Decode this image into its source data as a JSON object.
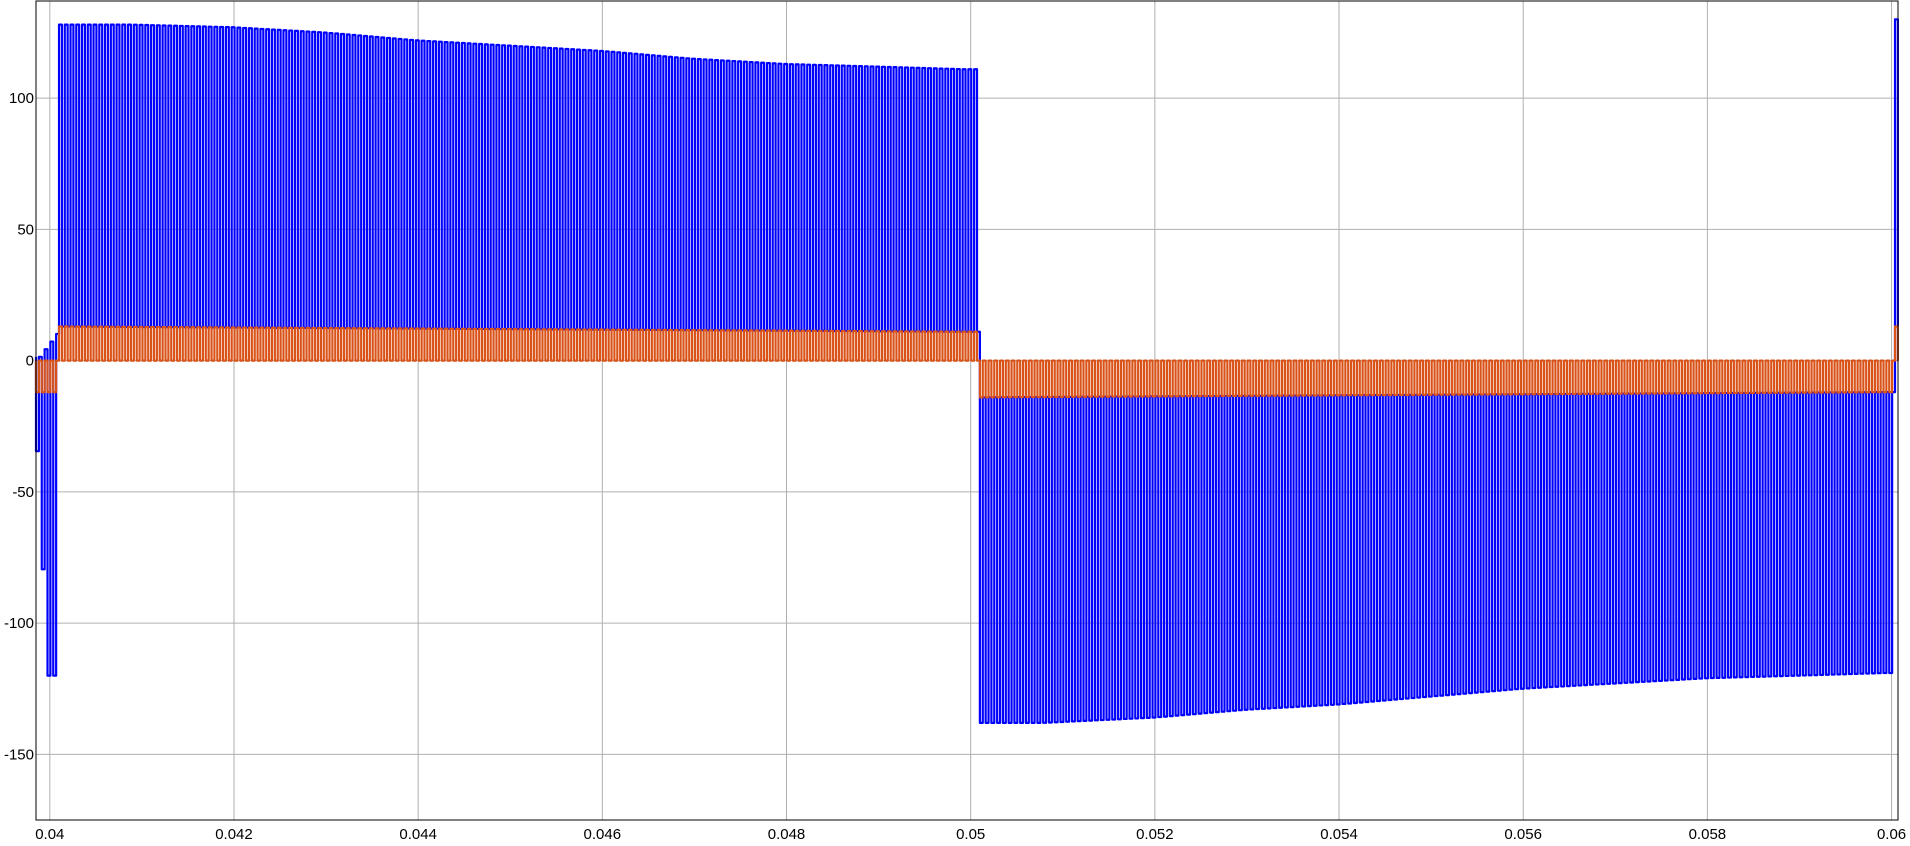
{
  "chart_data": {
    "type": "line",
    "title": "",
    "xlabel": "",
    "ylabel": "",
    "xlim": [
      0.03985,
      0.06007
    ],
    "ylim": [
      -175,
      137
    ],
    "grid": true,
    "legend": "none",
    "x_ticks": [
      0.04,
      0.042,
      0.044,
      0.046,
      0.048,
      0.05,
      0.052,
      0.054,
      0.056,
      0.058,
      0.06
    ],
    "x_tick_labels": [
      "0.04",
      "0.042",
      "0.044",
      "0.046",
      "0.048",
      "0.05",
      "0.052",
      "0.054",
      "0.056",
      "0.058",
      "0.06"
    ],
    "y_ticks": [
      100,
      50,
      0,
      -50,
      -100,
      -150
    ],
    "y_tick_labels": [
      "100",
      "50",
      "0",
      "-50",
      "-100",
      "-150"
    ],
    "colors": {
      "series_blue": "#0000ff",
      "series_orange": "#d95319",
      "grid": "#b0b0b0",
      "axes": "#000000"
    },
    "series": [
      {
        "color": "#0000ff",
        "kind": "pwm_pulses",
        "envelope": [
          {
            "x": 0.03985,
            "y": -12
          },
          {
            "x": 0.04,
            "y": -120
          },
          {
            "x": 0.04013,
            "y": 128
          },
          {
            "x": 0.0409,
            "y": 128
          },
          {
            "x": 0.042,
            "y": 127
          },
          {
            "x": 0.043,
            "y": 125
          },
          {
            "x": 0.044,
            "y": 122
          },
          {
            "x": 0.045,
            "y": 120
          },
          {
            "x": 0.046,
            "y": 118
          },
          {
            "x": 0.047,
            "y": 115
          },
          {
            "x": 0.048,
            "y": 113
          },
          {
            "x": 0.049,
            "y": 112
          },
          {
            "x": 0.04995,
            "y": 111
          },
          {
            "x": 0.05008,
            "y": -138
          },
          {
            "x": 0.0508,
            "y": -138
          },
          {
            "x": 0.052,
            "y": -136
          },
          {
            "x": 0.053,
            "y": -133
          },
          {
            "x": 0.054,
            "y": -131
          },
          {
            "x": 0.055,
            "y": -128
          },
          {
            "x": 0.056,
            "y": -125
          },
          {
            "x": 0.057,
            "y": -123
          },
          {
            "x": 0.058,
            "y": -121
          },
          {
            "x": 0.059,
            "y": -120
          },
          {
            "x": 0.05995,
            "y": -119
          },
          {
            "x": 0.06003,
            "y": 130
          }
        ],
        "base_level": [
          {
            "x": 0.03985,
            "y": 0
          },
          {
            "x": 0.04013,
            "y": 13
          },
          {
            "x": 0.04995,
            "y": 11
          },
          {
            "x": 0.05008,
            "y": -14
          },
          {
            "x": 0.05995,
            "y": -12
          },
          {
            "x": 0.06003,
            "y": 13
          }
        ]
      },
      {
        "color": "#d95319",
        "kind": "pwm_pulses",
        "envelope": [
          {
            "x": 0.03985,
            "y": -12
          },
          {
            "x": 0.04013,
            "y": 13
          },
          {
            "x": 0.045,
            "y": 12
          },
          {
            "x": 0.04995,
            "y": 11
          },
          {
            "x": 0.05008,
            "y": -14
          },
          {
            "x": 0.055,
            "y": -13
          },
          {
            "x": 0.05995,
            "y": -12
          },
          {
            "x": 0.06003,
            "y": 13
          }
        ],
        "base_level": [
          {
            "x": 0.03985,
            "y": 0
          },
          {
            "x": 0.06007,
            "y": 0
          }
        ]
      }
    ]
  }
}
